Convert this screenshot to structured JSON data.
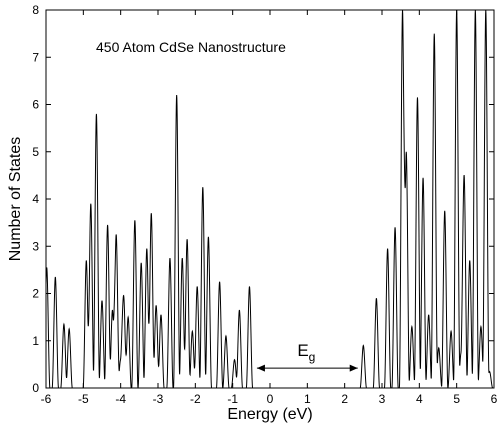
{
  "chart_data": {
    "type": "line",
    "title": "450 Atom CdSe Nanostructure",
    "xlabel": "Energy (eV)",
    "ylabel": "Number of States",
    "xlim": [
      -6,
      6
    ],
    "ylim": [
      0,
      8
    ],
    "xticks": [
      -6,
      -5,
      -4,
      -3,
      -2,
      -1,
      0,
      1,
      2,
      3,
      4,
      5,
      6
    ],
    "yticks": [
      0,
      1,
      2,
      3,
      4,
      5,
      6,
      7,
      8
    ],
    "grid": false,
    "line_color": "#000000",
    "annotation": {
      "label": "E",
      "subscript": "g",
      "x_start": -0.35,
      "x_end": 2.35,
      "y": 0.42
    },
    "series": [
      {
        "peaks": [
          [
            -5.98,
            2.55
          ],
          [
            -5.75,
            2.35
          ],
          [
            -5.52,
            1.35
          ],
          [
            -5.38,
            1.25
          ],
          [
            -4.92,
            2.7
          ],
          [
            -4.8,
            3.9
          ],
          [
            -4.65,
            5.8
          ],
          [
            -4.5,
            1.85
          ],
          [
            -4.35,
            3.45
          ],
          [
            -4.22,
            1.65
          ],
          [
            -4.12,
            3.25
          ],
          [
            -4.0,
            0.6
          ],
          [
            -3.92,
            1.95
          ],
          [
            -3.8,
            1.5
          ],
          [
            -3.62,
            3.55
          ],
          [
            -3.45,
            2.65
          ],
          [
            -3.3,
            2.95
          ],
          [
            -3.18,
            3.7
          ],
          [
            -3.05,
            1.75
          ],
          [
            -2.92,
            1.55
          ],
          [
            -2.68,
            2.75
          ],
          [
            -2.5,
            6.2
          ],
          [
            -2.35,
            2.75
          ],
          [
            -2.22,
            3.15
          ],
          [
            -2.08,
            1.2
          ],
          [
            -1.95,
            2.15
          ],
          [
            -1.8,
            4.25
          ],
          [
            -1.65,
            3.2
          ],
          [
            -1.35,
            2.25
          ],
          [
            -1.18,
            1.1
          ],
          [
            -0.95,
            0.6
          ],
          [
            -0.82,
            1.65
          ],
          [
            -0.55,
            2.15
          ],
          [
            2.5,
            0.9
          ],
          [
            2.85,
            1.9
          ],
          [
            3.15,
            2.95
          ],
          [
            3.35,
            3.4
          ],
          [
            3.55,
            8.0
          ],
          [
            3.65,
            5.0
          ],
          [
            3.8,
            1.3
          ],
          [
            3.95,
            6.15
          ],
          [
            4.1,
            4.45
          ],
          [
            4.25,
            1.55
          ],
          [
            4.4,
            7.5
          ],
          [
            4.52,
            0.85
          ],
          [
            4.68,
            3.75
          ],
          [
            4.85,
            1.2
          ],
          [
            5.0,
            8.0
          ],
          [
            5.12,
            0.75
          ],
          [
            5.2,
            4.5
          ],
          [
            5.35,
            2.7
          ],
          [
            5.5,
            8.0
          ],
          [
            5.65,
            1.3
          ],
          [
            5.78,
            8.0
          ],
          [
            5.88,
            0.35
          ]
        ],
        "peak_half_width": 0.085
      }
    ]
  }
}
